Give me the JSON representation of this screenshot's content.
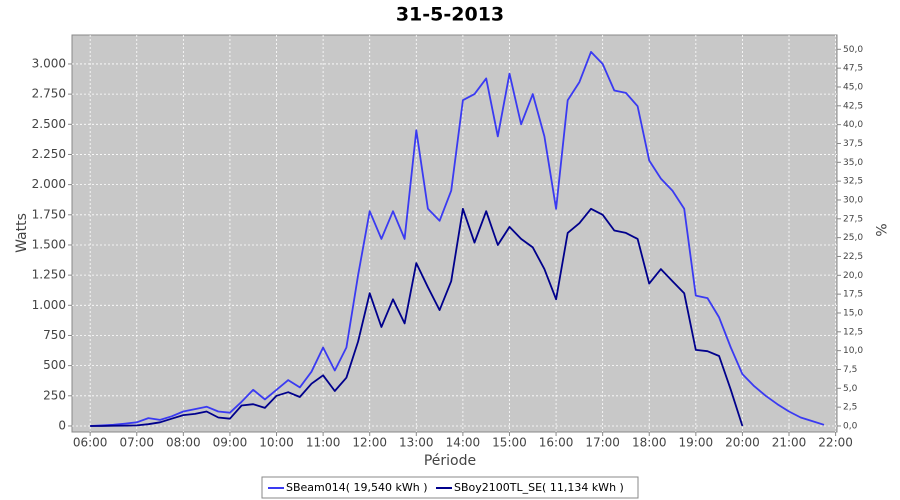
{
  "chart_data": {
    "type": "line",
    "title": "31-5-2013",
    "xlabel": "Période",
    "ylabel": "Watts",
    "y2label": "%",
    "x": [
      6,
      6.25,
      6.5,
      6.75,
      7,
      7.25,
      7.5,
      7.75,
      8,
      8.25,
      8.5,
      8.75,
      9,
      9.25,
      9.5,
      9.75,
      10,
      10.25,
      10.5,
      10.75,
      11,
      11.25,
      11.5,
      11.75,
      12,
      12.25,
      12.5,
      12.75,
      13,
      13.25,
      13.5,
      13.75,
      14,
      14.25,
      14.5,
      14.75,
      15,
      15.25,
      15.5,
      15.75,
      16,
      16.25,
      16.5,
      16.75,
      17,
      17.25,
      17.5,
      17.75,
      18,
      18.25,
      18.5,
      18.75,
      19,
      19.25,
      19.5,
      19.75,
      20,
      20.25,
      20.5,
      20.75,
      21,
      21.25,
      21.5,
      21.75
    ],
    "series": [
      {
        "name": "SBeam014( 19,540 kWh )",
        "color": "#3a3af2",
        "values": [
          0,
          5,
          10,
          20,
          30,
          65,
          50,
          80,
          120,
          140,
          160,
          120,
          110,
          200,
          300,
          220,
          300,
          380,
          320,
          450,
          650,
          460,
          650,
          1250,
          1780,
          1550,
          1780,
          1550,
          2450,
          1800,
          1700,
          1950,
          2700,
          2750,
          2880,
          2400,
          2920,
          2500,
          2750,
          2400,
          1800,
          2700,
          2850,
          3100,
          3000,
          2780,
          2760,
          2650,
          2200,
          2050,
          1950,
          1800,
          1080,
          1060,
          900,
          650,
          430,
          330,
          250,
          180,
          120,
          70,
          40,
          10
        ]
      },
      {
        "name": "SBoy2100TL_SE( 11,134 kWh )",
        "color": "#00008c",
        "values": [
          0,
          0,
          2,
          3,
          5,
          15,
          30,
          60,
          90,
          100,
          120,
          70,
          60,
          170,
          180,
          150,
          250,
          280,
          240,
          350,
          420,
          290,
          400,
          700,
          1100,
          820,
          1050,
          850,
          1350,
          1150,
          960,
          1200,
          1800,
          1520,
          1780,
          1500,
          1650,
          1550,
          1480,
          1300,
          1050,
          1600,
          1680,
          1800,
          1750,
          1620,
          1600,
          1550,
          1180,
          1300,
          1200,
          1100,
          630,
          620,
          580,
          300,
          0,
          null,
          null,
          null,
          null,
          null,
          null,
          null
        ]
      }
    ],
    "xlim": [
      5.61,
      22.03
    ],
    "xticks": [
      {
        "value": 6,
        "label": "06:00"
      },
      {
        "value": 7,
        "label": "07:00"
      },
      {
        "value": 8,
        "label": "08:00"
      },
      {
        "value": 9,
        "label": "09:00"
      },
      {
        "value": 10,
        "label": "10:00"
      },
      {
        "value": 11,
        "label": "11:00"
      },
      {
        "value": 12,
        "label": "12:00"
      },
      {
        "value": 13,
        "label": "13:00"
      },
      {
        "value": 14,
        "label": "14:00"
      },
      {
        "value": 15,
        "label": "15:00"
      },
      {
        "value": 16,
        "label": "16:00"
      },
      {
        "value": 17,
        "label": "17:00"
      },
      {
        "value": 18,
        "label": "18:00"
      },
      {
        "value": 19,
        "label": "19:00"
      },
      {
        "value": 20,
        "label": "20:00"
      },
      {
        "value": 21,
        "label": "21:00"
      },
      {
        "value": 22,
        "label": "22:00"
      }
    ],
    "ylim": [
      -50,
      3240
    ],
    "yticks": [
      0,
      250,
      500,
      750,
      {
        "value": 1000,
        "label": "1.000"
      },
      {
        "value": 1250,
        "label": "1.250"
      },
      {
        "value": 1500,
        "label": "1.500"
      },
      {
        "value": 1750,
        "label": "1.750"
      },
      {
        "value": 2000,
        "label": "2.000"
      },
      {
        "value": 2250,
        "label": "2.250"
      },
      {
        "value": 2500,
        "label": "2.500"
      },
      {
        "value": 2750,
        "label": "2.750"
      },
      {
        "value": 3000,
        "label": "3.000"
      }
    ],
    "y2lim": [
      -0.8,
      51.9
    ],
    "y2ticks": [
      {
        "value": 0,
        "label": "0,0"
      },
      {
        "value": 2.5,
        "label": "2,5"
      },
      {
        "value": 5,
        "label": "5,0"
      },
      {
        "value": 7.5,
        "label": "7,5"
      },
      {
        "value": 10,
        "label": "10,0"
      },
      {
        "value": 12.5,
        "label": "12,5"
      },
      {
        "value": 15,
        "label": "15,0"
      },
      {
        "value": 17.5,
        "label": "17,5"
      },
      {
        "value": 20,
        "label": "20,0"
      },
      {
        "value": 22.5,
        "label": "22,5"
      },
      {
        "value": 25,
        "label": "25,0"
      },
      {
        "value": 27.5,
        "label": "27,5"
      },
      {
        "value": 30,
        "label": "30,0"
      },
      {
        "value": 32.5,
        "label": "32,5"
      },
      {
        "value": 35,
        "label": "35,0"
      },
      {
        "value": 37.5,
        "label": "37,5"
      },
      {
        "value": 40,
        "label": "40,0"
      },
      {
        "value": 42.5,
        "label": "42,5"
      },
      {
        "value": 45,
        "label": "45,0"
      },
      {
        "value": 47.5,
        "label": "47,5"
      },
      {
        "value": 50,
        "label": "50,0"
      }
    ],
    "grid": true,
    "plot_background": "#c8c8c8",
    "legend": "bottom"
  }
}
